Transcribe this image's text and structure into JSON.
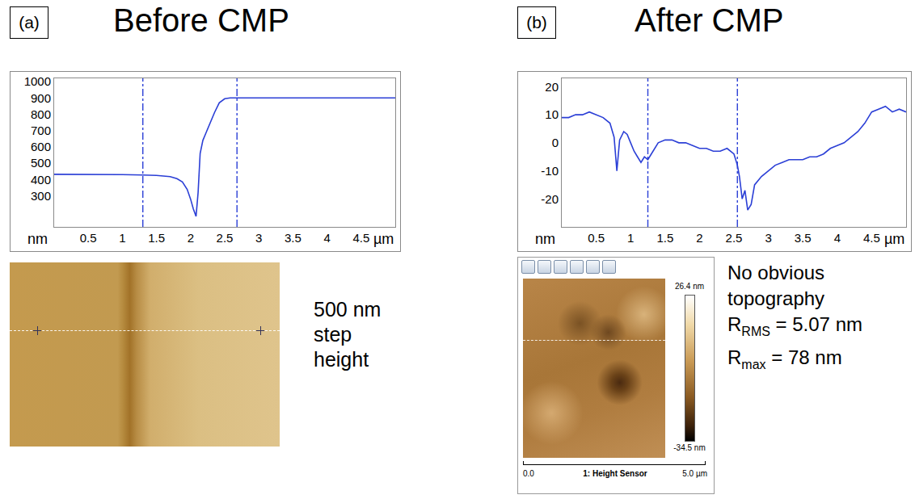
{
  "chart_data": [
    {
      "type": "line",
      "panel": "(a)",
      "title": "Before CMP",
      "x": [
        0,
        0.5,
        1.0,
        1.3,
        1.5,
        1.7,
        1.8,
        1.88,
        1.95,
        2.0,
        2.04,
        2.08,
        2.11,
        2.14,
        2.18,
        2.22,
        2.28,
        2.35,
        2.42,
        2.5,
        2.58,
        2.7,
        3.0,
        3.5,
        4.0,
        4.5,
        5.0
      ],
      "values": [
        432,
        432,
        430,
        428,
        425,
        418,
        405,
        385,
        340,
        280,
        220,
        175,
        320,
        560,
        640,
        680,
        740,
        810,
        870,
        895,
        900,
        900,
        902,
        900,
        900,
        900,
        900
      ],
      "color": "#2b3fd6",
      "xlim": [
        0,
        5
      ],
      "xticks": [
        0.5,
        1,
        1.5,
        2,
        2.5,
        3,
        3.5,
        4,
        4.5
      ],
      "ylim": [
        110,
        1020
      ],
      "yticks": [
        300,
        400,
        500,
        600,
        700,
        800,
        900,
        1000
      ],
      "x_unit": "µm",
      "y_unit": "nm",
      "cursors": [
        1.3,
        2.68
      ],
      "annotation": "500 nm step height"
    },
    {
      "type": "line",
      "panel": "(b)",
      "title": "After CMP",
      "x": [
        0,
        0.1,
        0.2,
        0.3,
        0.4,
        0.5,
        0.6,
        0.7,
        0.76,
        0.8,
        0.84,
        0.9,
        0.95,
        1.0,
        1.05,
        1.1,
        1.15,
        1.2,
        1.25,
        1.3,
        1.35,
        1.4,
        1.5,
        1.6,
        1.7,
        1.8,
        1.9,
        2.0,
        2.1,
        2.2,
        2.3,
        2.4,
        2.5,
        2.55,
        2.58,
        2.62,
        2.66,
        2.7,
        2.75,
        2.8,
        2.9,
        3.0,
        3.1,
        3.2,
        3.3,
        3.4,
        3.5,
        3.6,
        3.7,
        3.8,
        3.9,
        4.0,
        4.1,
        4.2,
        4.3,
        4.4,
        4.5,
        4.6,
        4.7,
        4.8,
        4.9,
        5.0
      ],
      "values": [
        9,
        9,
        10,
        10,
        11,
        10,
        9,
        7,
        2,
        -10,
        1,
        4,
        3,
        0,
        -3,
        -5,
        -7,
        -5,
        -6,
        -4,
        -2,
        0,
        1,
        1,
        0,
        0,
        -1,
        -2,
        -2,
        -3,
        -3,
        -2,
        -4,
        -8,
        -12,
        -20,
        -17,
        -24,
        -22,
        -15,
        -12,
        -10,
        -8,
        -7,
        -6,
        -6,
        -6,
        -5,
        -5,
        -4,
        -2,
        -1,
        0,
        2,
        4,
        7,
        11,
        12,
        13,
        11,
        12,
        11
      ],
      "color": "#2b3fd6",
      "xlim": [
        0,
        5
      ],
      "xticks": [
        0.5,
        1,
        1.5,
        2,
        2.5,
        3,
        3.5,
        4,
        4.5
      ],
      "ylim": [
        -30,
        23
      ],
      "yticks": [
        -20,
        -10,
        0,
        10,
        20
      ],
      "x_unit": "µm",
      "y_unit": "nm",
      "cursors": [
        1.25,
        2.55
      ],
      "image": {
        "colorbar_top": "26.4 nm",
        "colorbar_bottom": "-34.5 nm",
        "scale_start": "0.0",
        "scale_end": "5.0 µm",
        "caption": "1: Height Sensor"
      },
      "annotation": "No obvious topography",
      "roughness": [
        {
          "base": "R",
          "sub": "RMS",
          "rest": " = 5.07 nm"
        },
        {
          "base": "R",
          "sub": "max",
          "rest": " = 78 nm"
        }
      ]
    }
  ]
}
